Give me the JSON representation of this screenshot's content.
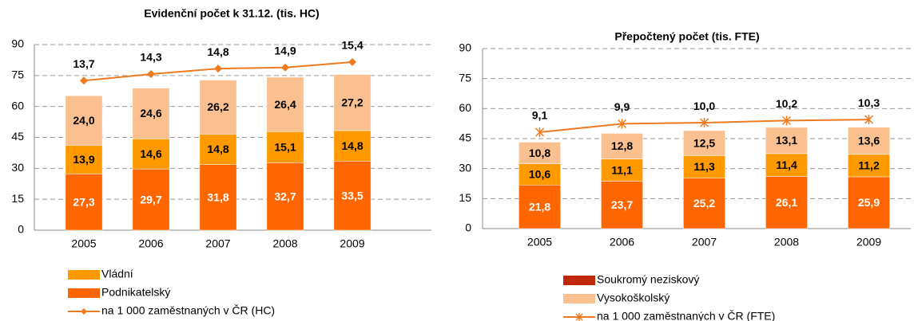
{
  "chart_data": [
    {
      "type": "bar",
      "title": "Evidenční počet k 31.12. (tis. HC)",
      "categories": [
        "2005",
        "2006",
        "2007",
        "2008",
        "2009"
      ],
      "ylim": [
        0,
        90
      ],
      "yticks": [
        0,
        15,
        30,
        45,
        60,
        75,
        90
      ],
      "y2lim": [
        0,
        17
      ],
      "grid": true,
      "series": [
        {
          "name": "Podnikatelský",
          "color": "#ff6600",
          "label_color": "#ffffff",
          "values": [
            27.3,
            29.7,
            31.8,
            32.7,
            33.5
          ],
          "value_labels": [
            "27,3",
            "29,7",
            "31,8",
            "32,7",
            "33,5"
          ]
        },
        {
          "name": "Vládní",
          "color": "#ff9900",
          "label_color": "#000000",
          "values": [
            13.9,
            14.6,
            14.8,
            15.1,
            14.8
          ],
          "value_labels": [
            "13,9",
            "14,6",
            "14,8",
            "15,1",
            "14,8"
          ]
        },
        {
          "color": "#fac090",
          "label_color": "#000000",
          "values": [
            24.0,
            24.6,
            26.2,
            26.4,
            27.2
          ],
          "value_labels": [
            "24,0",
            "24,6",
            "26,2",
            "26,4",
            "27,2"
          ]
        },
        {
          "name": "na 1 000 zaměstnaných v ČR (HC)",
          "type": "line",
          "axis": "y2",
          "marker": "diamond",
          "color": "#f07a20",
          "values": [
            13.7,
            14.3,
            14.8,
            14.9,
            15.4
          ],
          "value_labels": [
            "13,7",
            "14,3",
            "14,8",
            "14,9",
            "15,4"
          ]
        }
      ]
    },
    {
      "type": "bar",
      "title": "Přepočtený počet (tis. FTE)",
      "categories": [
        "2005",
        "2006",
        "2007",
        "2008",
        "2009"
      ],
      "ylim": [
        0,
        90
      ],
      "yticks": [
        0,
        15,
        30,
        45,
        60,
        75,
        90
      ],
      "y2lim": [
        0,
        17
      ],
      "grid": true,
      "series": [
        {
          "color": "#ff6600",
          "label_color": "#ffffff",
          "values": [
            21.8,
            23.7,
            25.2,
            26.1,
            25.9
          ],
          "value_labels": [
            "21,8",
            "23,7",
            "25,2",
            "26,1",
            "25,9"
          ]
        },
        {
          "color": "#ff9900",
          "label_color": "#000000",
          "values": [
            10.6,
            11.1,
            11.3,
            11.4,
            11.2
          ],
          "value_labels": [
            "10,6",
            "11,1",
            "11,3",
            "11,4",
            "11,2"
          ]
        },
        {
          "name": "Vysokoškolský",
          "color": "#fac090",
          "label_color": "#000000",
          "values": [
            10.8,
            12.8,
            12.5,
            13.1,
            13.6
          ],
          "value_labels": [
            "10,8",
            "12,8",
            "12,5",
            "13,1",
            "13,6"
          ]
        },
        {
          "name": "Soukromý neziskový",
          "color": "#c0280c",
          "values": [
            0,
            0,
            0,
            0,
            0
          ]
        },
        {
          "name": "na 1 000 zaměstnaných v ČR (FTE)",
          "type": "line",
          "axis": "y2",
          "marker": "star",
          "color": "#f07a20",
          "values": [
            9.1,
            9.9,
            10.0,
            10.2,
            10.3
          ],
          "value_labels": [
            "9,1",
            "9,9",
            "10,0",
            "10,2",
            "10,3"
          ]
        }
      ]
    }
  ]
}
